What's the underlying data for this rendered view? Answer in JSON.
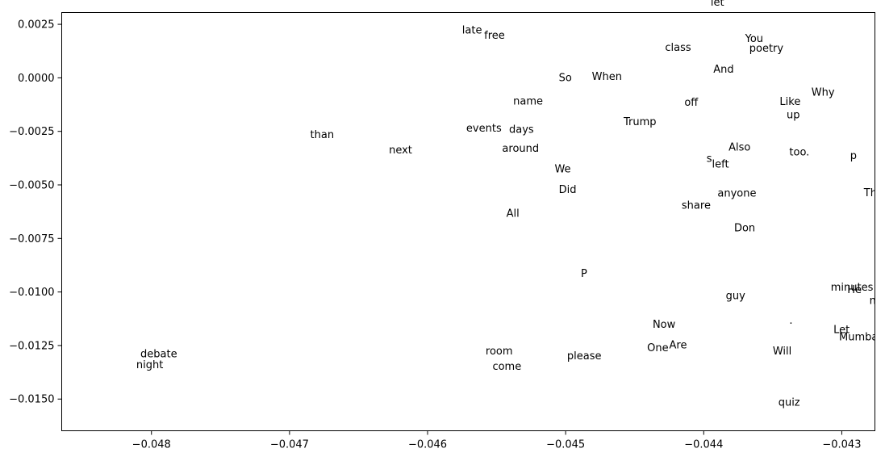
{
  "chart_data": {
    "type": "scatter",
    "title": "",
    "xlabel": "",
    "ylabel": "",
    "xlim": [
      -0.04865,
      -0.04276
    ],
    "ylim": [
      -0.01648,
      0.00305
    ],
    "grid": false,
    "legend": "none",
    "xticks": [
      {
        "value": -0.048,
        "label": "−0.048"
      },
      {
        "value": -0.047,
        "label": "−0.047"
      },
      {
        "value": -0.046,
        "label": "−0.046"
      },
      {
        "value": -0.045,
        "label": "−0.045"
      },
      {
        "value": -0.044,
        "label": "−0.044"
      },
      {
        "value": -0.043,
        "label": "−0.043"
      }
    ],
    "yticks": [
      {
        "value": 0.0025,
        "label": "0.0025"
      },
      {
        "value": 0.0,
        "label": "0.0000"
      },
      {
        "value": -0.0025,
        "label": "−0.0025"
      },
      {
        "value": -0.005,
        "label": "−0.0050"
      },
      {
        "value": -0.0075,
        "label": "−0.0075"
      },
      {
        "value": -0.01,
        "label": "−0.0100"
      },
      {
        "value": -0.0125,
        "label": "−0.0125"
      },
      {
        "value": -0.015,
        "label": "−0.0150"
      }
    ],
    "points": [
      {
        "label": "let",
        "x": -0.04395,
        "y": 0.00337
      },
      {
        "label": "late",
        "x": -0.04575,
        "y": 0.00207
      },
      {
        "label": "free",
        "x": -0.04559,
        "y": 0.00182
      },
      {
        "label": "You",
        "x": -0.0437,
        "y": 0.00167
      },
      {
        "label": "class",
        "x": -0.04428,
        "y": 0.00126
      },
      {
        "label": "poetry",
        "x": -0.04367,
        "y": 0.00122
      },
      {
        "label": "And",
        "x": -0.04393,
        "y": 0.00024
      },
      {
        "label": "When",
        "x": -0.04481,
        "y": -9e-05
      },
      {
        "label": "So",
        "x": -0.04505,
        "y": -0.00016
      },
      {
        "label": "Why",
        "x": -0.04322,
        "y": -0.00083
      },
      {
        "label": "name",
        "x": -0.04538,
        "y": -0.00124
      },
      {
        "label": "off",
        "x": -0.04414,
        "y": -0.00131
      },
      {
        "label": "Like",
        "x": -0.04345,
        "y": -0.00127
      },
      {
        "label": "up",
        "x": -0.0434,
        "y": -0.00188
      },
      {
        "label": "Trump",
        "x": -0.04458,
        "y": -0.00221
      },
      {
        "label": "events",
        "x": -0.04572,
        "y": -0.00251
      },
      {
        "label": "days",
        "x": -0.04541,
        "y": -0.00256
      },
      {
        "label": "than",
        "x": -0.04685,
        "y": -0.00282
      },
      {
        "label": "around",
        "x": -0.04546,
        "y": -0.00346
      },
      {
        "label": "next",
        "x": -0.04628,
        "y": -0.00353
      },
      {
        "label": "Also",
        "x": -0.04382,
        "y": -0.0034
      },
      {
        "label": "too.",
        "x": -0.04338,
        "y": -0.00363
      },
      {
        "label": "p",
        "x": -0.04294,
        "y": -0.00379
      },
      {
        "label": "s",
        "x": -0.04398,
        "y": -0.00393
      },
      {
        "label": "left",
        "x": -0.04394,
        "y": -0.00418
      },
      {
        "label": "We",
        "x": -0.04508,
        "y": -0.00442
      },
      {
        "label": "Did",
        "x": -0.04505,
        "y": -0.00537
      },
      {
        "label": "anyone",
        "x": -0.0439,
        "y": -0.00555
      },
      {
        "label": "This",
        "x": -0.04284,
        "y": -0.00552
      },
      {
        "label": "share",
        "x": -0.04416,
        "y": -0.00612
      },
      {
        "label": "All",
        "x": -0.04543,
        "y": -0.00649
      },
      {
        "label": "Don",
        "x": -0.04378,
        "y": -0.00717
      },
      {
        "label": "P",
        "x": -0.04489,
        "y": -0.0093
      },
      {
        "label": "minutes",
        "x": -0.04308,
        "y": -0.00994
      },
      {
        "label": "He",
        "x": -0.04296,
        "y": -0.01006
      },
      {
        "label": "guy",
        "x": -0.04384,
        "y": -0.01034
      },
      {
        "label": "new",
        "x": -0.0428,
        "y": -0.01057
      },
      {
        "label": ".",
        "x": -0.04338,
        "y": -0.01149
      },
      {
        "label": "Now",
        "x": -0.04437,
        "y": -0.01167
      },
      {
        "label": "Let",
        "x": -0.04306,
        "y": -0.01191
      },
      {
        "label": "Mumbai",
        "x": -0.04302,
        "y": -0.01225
      },
      {
        "label": "Are",
        "x": -0.04425,
        "y": -0.01263
      },
      {
        "label": "One",
        "x": -0.04441,
        "y": -0.01277
      },
      {
        "label": "room",
        "x": -0.04558,
        "y": -0.01292
      },
      {
        "label": "Will",
        "x": -0.0435,
        "y": -0.01292
      },
      {
        "label": "debate",
        "x": -0.04808,
        "y": -0.01305
      },
      {
        "label": "please",
        "x": -0.04499,
        "y": -0.01314
      },
      {
        "label": "night",
        "x": -0.04811,
        "y": -0.01355
      },
      {
        "label": "come",
        "x": -0.04553,
        "y": -0.01363
      },
      {
        "label": "quiz",
        "x": -0.04346,
        "y": -0.01532
      }
    ]
  }
}
